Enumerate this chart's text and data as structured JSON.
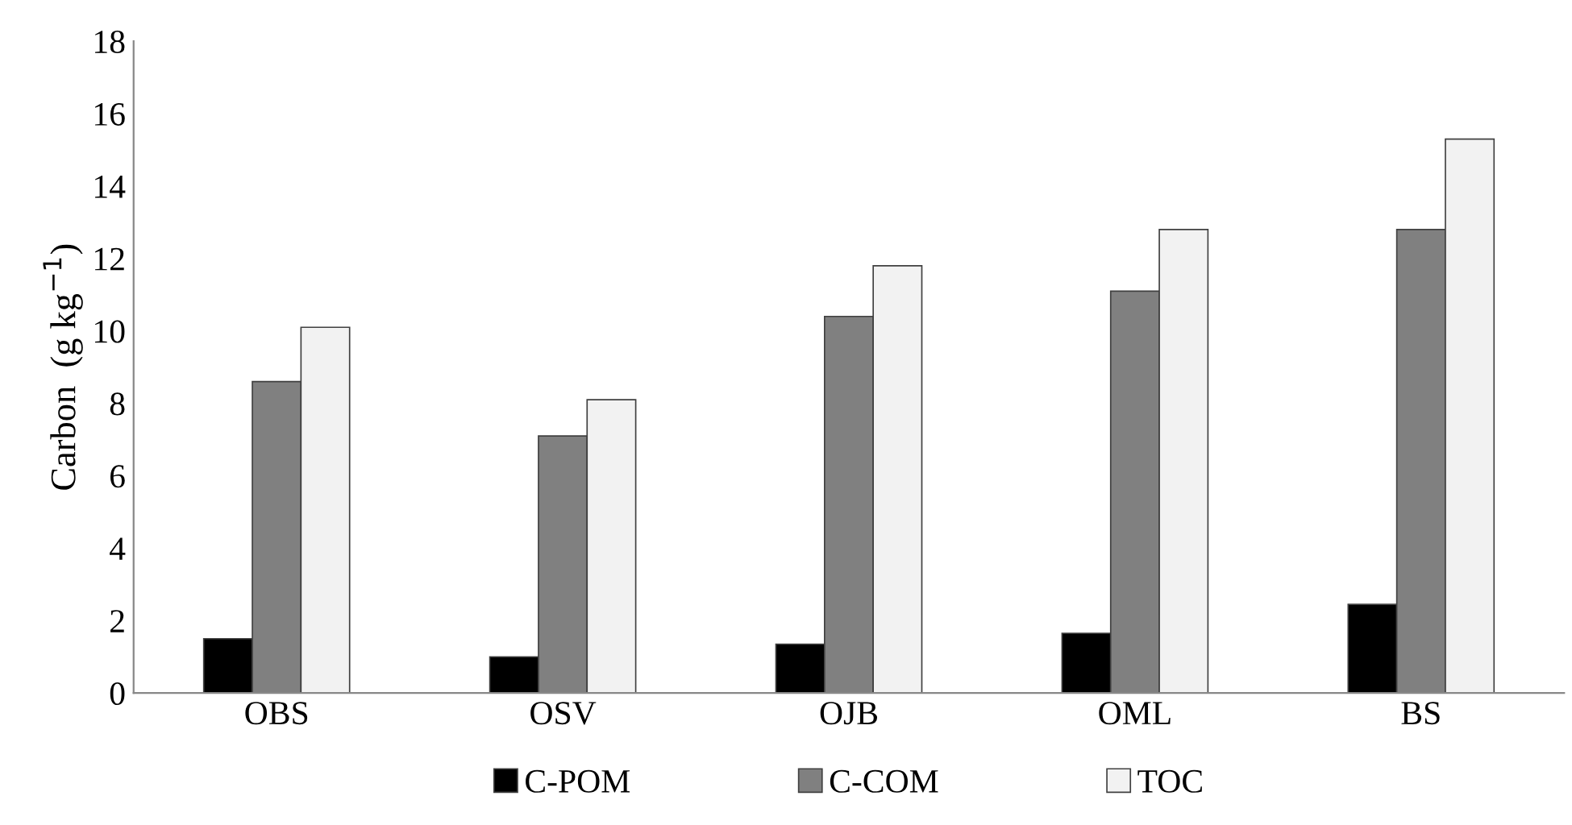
{
  "chart_data": {
    "type": "bar",
    "ylabel": "Carbon  (g kg$^{−1}$)",
    "categories": [
      "OBS",
      "OSV",
      "OJB",
      "OML",
      "BS"
    ],
    "series": [
      {
        "name": "C-POM",
        "color": "#000000",
        "values": [
          1.5,
          1.0,
          1.35,
          1.65,
          2.45
        ]
      },
      {
        "name": "C-COM",
        "color": "#808080",
        "values": [
          8.6,
          7.1,
          10.4,
          11.1,
          12.8
        ]
      },
      {
        "name": "TOC",
        "color": "#f2f2f2",
        "values": [
          10.1,
          8.1,
          11.8,
          12.8,
          15.3
        ]
      }
    ],
    "ylim": [
      0,
      18
    ],
    "yticks": [
      0,
      2,
      4,
      6,
      8,
      10,
      12,
      14,
      16,
      18
    ],
    "grid": false,
    "legend": "bottom"
  }
}
